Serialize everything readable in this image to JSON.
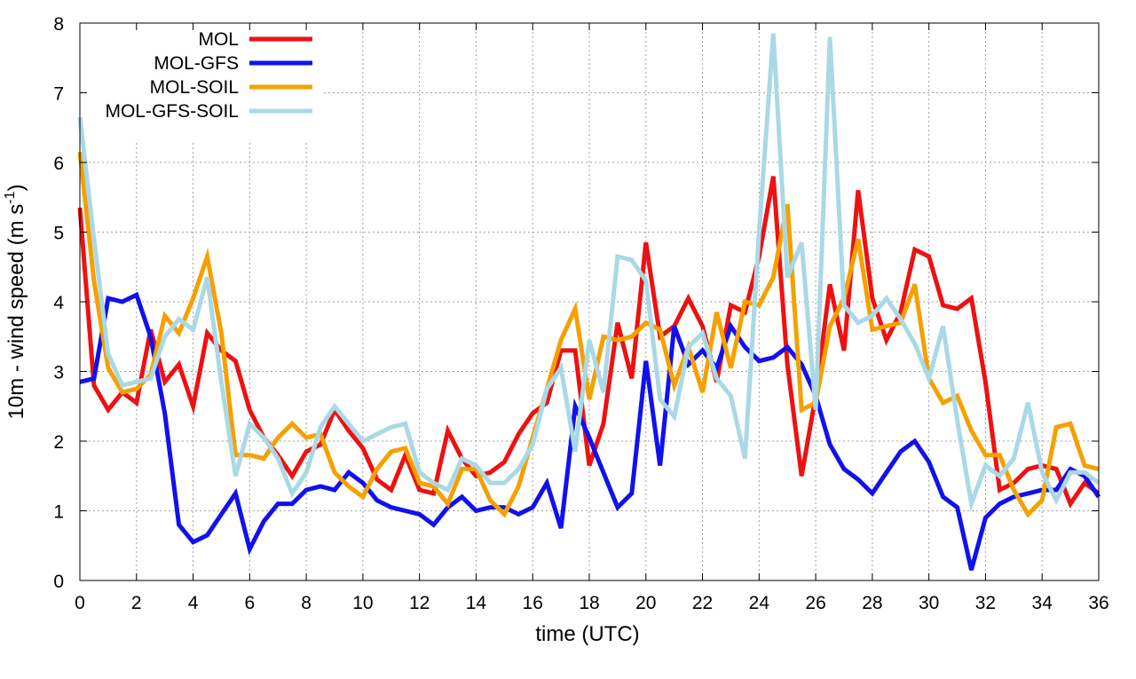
{
  "chart_data": {
    "type": "line",
    "title": "",
    "xlabel": "time (UTC)",
    "ylabel_main": "10m - wind speed  (m s",
    "ylabel_sup": "-1",
    "ylabel_end": ")",
    "xlim": [
      0,
      36
    ],
    "ylim": [
      0,
      8
    ],
    "xticks": [
      0,
      2,
      4,
      6,
      8,
      10,
      12,
      14,
      16,
      18,
      20,
      22,
      24,
      26,
      28,
      30,
      32,
      34,
      36
    ],
    "yticks": [
      0,
      1,
      2,
      3,
      4,
      5,
      6,
      7,
      8
    ],
    "grid": true,
    "legend_position": "top-left",
    "x": [
      0,
      0.5,
      1,
      1.5,
      2,
      2.5,
      3,
      3.5,
      4,
      4.5,
      5,
      5.5,
      6,
      6.5,
      7,
      7.5,
      8,
      8.5,
      9,
      9.5,
      10,
      10.5,
      11,
      11.5,
      12,
      12.5,
      13,
      13.5,
      14,
      14.5,
      15,
      15.5,
      16,
      16.5,
      17,
      17.5,
      18,
      18.5,
      19,
      19.5,
      20,
      20.5,
      21,
      21.5,
      22,
      22.5,
      23,
      23.5,
      24,
      24.5,
      25,
      25.5,
      26,
      26.5,
      27,
      27.5,
      28,
      28.5,
      29,
      29.5,
      30,
      30.5,
      31,
      31.5,
      32,
      32.5,
      33,
      33.5,
      34,
      34.5,
      35,
      35.5,
      36
    ],
    "series": [
      {
        "name": "MOL",
        "color": "#ee1111",
        "values": [
          5.35,
          2.8,
          2.45,
          2.7,
          2.55,
          3.6,
          2.85,
          3.1,
          2.5,
          3.55,
          3.3,
          3.15,
          2.45,
          2.05,
          1.8,
          1.5,
          1.85,
          1.95,
          2.45,
          2.15,
          1.9,
          1.45,
          1.3,
          1.8,
          1.3,
          1.25,
          2.15,
          1.75,
          1.5,
          1.55,
          1.7,
          2.1,
          2.4,
          2.55,
          3.3,
          3.3,
          1.65,
          2.25,
          3.7,
          2.9,
          4.85,
          3.5,
          3.65,
          4.05,
          3.65,
          2.85,
          3.95,
          3.85,
          4.65,
          5.8,
          3.1,
          1.5,
          2.65,
          4.25,
          3.3,
          5.6,
          4.05,
          3.45,
          3.85,
          4.75,
          4.65,
          3.95,
          3.9,
          4.05,
          2.85,
          1.3,
          1.4,
          1.6,
          1.65,
          1.6,
          1.1,
          1.4,
          1.25
        ]
      },
      {
        "name": "MOL-GFS",
        "color": "#1111ee",
        "values": [
          2.85,
          2.9,
          4.05,
          4.0,
          4.1,
          3.5,
          2.4,
          0.8,
          0.55,
          0.65,
          0.95,
          1.25,
          0.45,
          0.85,
          1.1,
          1.1,
          1.3,
          1.35,
          1.3,
          1.55,
          1.4,
          1.15,
          1.05,
          1.0,
          0.95,
          0.8,
          1.05,
          1.2,
          1.0,
          1.05,
          1.05,
          0.95,
          1.05,
          1.4,
          0.75,
          2.5,
          2.05,
          1.55,
          1.05,
          1.25,
          3.15,
          1.65,
          3.65,
          3.1,
          3.3,
          3.05,
          3.65,
          3.35,
          3.15,
          3.2,
          3.35,
          3.1,
          2.65,
          1.95,
          1.6,
          1.45,
          1.25,
          1.55,
          1.85,
          2.0,
          1.7,
          1.2,
          1.05,
          0.15,
          0.9,
          1.1,
          1.2,
          1.25,
          1.3,
          1.3,
          1.6,
          1.5,
          1.2
        ]
      },
      {
        "name": "MOL-SOIL",
        "color": "#f5a000",
        "values": [
          6.15,
          4.3,
          3.05,
          2.7,
          2.75,
          2.95,
          3.8,
          3.55,
          4.05,
          4.65,
          3.55,
          1.8,
          1.8,
          1.75,
          2.05,
          2.25,
          2.05,
          2.1,
          1.55,
          1.35,
          1.2,
          1.6,
          1.85,
          1.9,
          1.4,
          1.35,
          1.1,
          1.6,
          1.6,
          1.15,
          0.95,
          1.35,
          2.05,
          2.75,
          3.45,
          3.9,
          2.6,
          3.5,
          3.45,
          3.5,
          3.7,
          3.6,
          2.8,
          3.35,
          2.7,
          3.85,
          3.05,
          4.0,
          3.95,
          4.35,
          5.4,
          2.45,
          2.55,
          3.65,
          4.05,
          4.9,
          3.6,
          3.65,
          3.7,
          4.25,
          2.9,
          2.55,
          2.65,
          2.15,
          1.8,
          1.8,
          1.3,
          0.95,
          1.15,
          2.2,
          2.25,
          1.65,
          1.6
        ]
      },
      {
        "name": "MOL-GFS-SOIL",
        "color": "#aad8e6",
        "values": [
          6.65,
          4.9,
          3.25,
          2.8,
          2.85,
          2.9,
          3.5,
          3.75,
          3.6,
          4.35,
          2.85,
          1.5,
          2.25,
          2.05,
          1.75,
          1.25,
          1.55,
          2.2,
          2.5,
          2.25,
          2.0,
          2.1,
          2.2,
          2.25,
          1.55,
          1.4,
          1.3,
          1.75,
          1.65,
          1.4,
          1.4,
          1.6,
          1.95,
          2.75,
          3.05,
          1.85,
          3.45,
          2.7,
          4.65,
          4.6,
          4.3,
          2.6,
          2.35,
          3.35,
          3.55,
          2.9,
          2.65,
          1.75,
          5.0,
          7.85,
          4.35,
          4.85,
          2.45,
          7.8,
          3.95,
          3.7,
          3.8,
          4.05,
          3.75,
          3.4,
          2.9,
          3.65,
          2.3,
          1.1,
          1.65,
          1.5,
          1.75,
          2.55,
          1.55,
          1.15,
          1.55,
          1.55,
          1.4
        ]
      }
    ]
  }
}
